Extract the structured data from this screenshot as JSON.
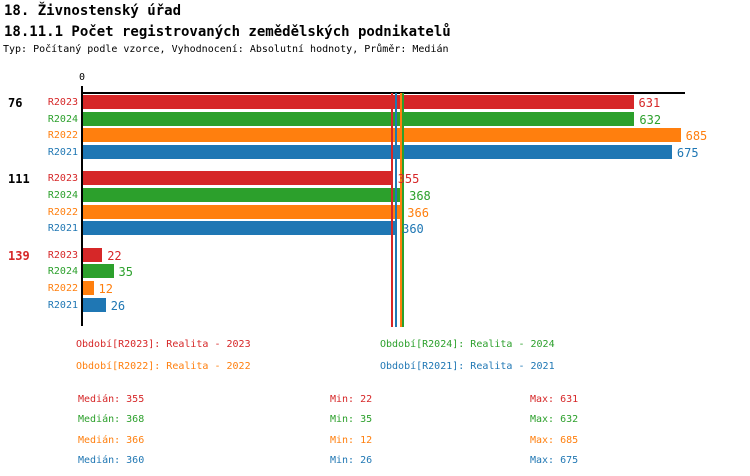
{
  "header": {
    "title": "18. Živnostenský úřad",
    "subtitle": "18.11.1 Počet registrovaných zemědělských podnikatelů",
    "info": "Typ: Počítaný podle vzorce, Vyhodnocení: Absolutní hodnoty, Průměr: Medián"
  },
  "colors": {
    "R2023": "#d62728",
    "R2024": "#2ca02c",
    "R2022": "#ff7f0e",
    "R2021": "#1f77b4",
    "axis": "#000000",
    "group_label_default": "#000000",
    "group_label_highlight": "#d62728"
  },
  "chart_data": {
    "type": "bar",
    "orientation": "horizontal",
    "title": "18.11.1 Počet registrovaných zemědělských podnikatelů",
    "xlabel": "",
    "ylabel": "",
    "xlim": [
      0,
      690
    ],
    "x_tick_labels": [
      "0"
    ],
    "grid": false,
    "legend_position": "bottom",
    "series_order": [
      "R2023",
      "R2024",
      "R2022",
      "R2021"
    ],
    "groups": [
      {
        "label": "76",
        "label_color": "#000000",
        "values": {
          "R2023": 631,
          "R2024": 632,
          "R2022": 685,
          "R2021": 675
        }
      },
      {
        "label": "111",
        "label_color": "#000000",
        "values": {
          "R2023": 355,
          "R2024": 368,
          "R2022": 366,
          "R2021": 360
        }
      },
      {
        "label": "139",
        "label_color": "#d62728",
        "values": {
          "R2023": 22,
          "R2024": 35,
          "R2022": 12,
          "R2021": 26
        }
      }
    ],
    "median_lines": {
      "R2023": 355,
      "R2024": 368,
      "R2022": 366,
      "R2021": 360
    }
  },
  "legend": {
    "items": [
      {
        "series": "R2023",
        "text": "Období[R2023]: Realita - 2023",
        "color": "#d62728",
        "col": 0,
        "row": 0
      },
      {
        "series": "R2024",
        "text": "Období[R2024]: Realita - 2024",
        "color": "#2ca02c",
        "col": 1,
        "row": 0
      },
      {
        "series": "R2022",
        "text": "Období[R2022]: Realita - 2022",
        "color": "#ff7f0e",
        "col": 0,
        "row": 1
      },
      {
        "series": "R2021",
        "text": "Období[R2021]: Realita - 2021",
        "color": "#1f77b4",
        "col": 1,
        "row": 1
      }
    ]
  },
  "stats": {
    "rows": [
      {
        "series": "R2023",
        "color": "#d62728",
        "median": 355,
        "min": 22,
        "max": 631,
        "median_text": "Medián: 355",
        "min_text": "Min: 22",
        "max_text": "Max: 631"
      },
      {
        "series": "R2024",
        "color": "#2ca02c",
        "median": 368,
        "min": 35,
        "max": 632,
        "median_text": "Medián: 368",
        "min_text": "Min: 35",
        "max_text": "Max: 632"
      },
      {
        "series": "R2022",
        "color": "#ff7f0e",
        "median": 366,
        "min": 12,
        "max": 685,
        "median_text": "Medián: 366",
        "min_text": "Min: 12",
        "max_text": "Max: 685"
      },
      {
        "series": "R2021",
        "color": "#1f77b4",
        "median": 360,
        "min": 26,
        "max": 675,
        "median_text": "Medián: 360",
        "min_text": "Min: 26",
        "max_text": "Max: 675"
      }
    ]
  }
}
